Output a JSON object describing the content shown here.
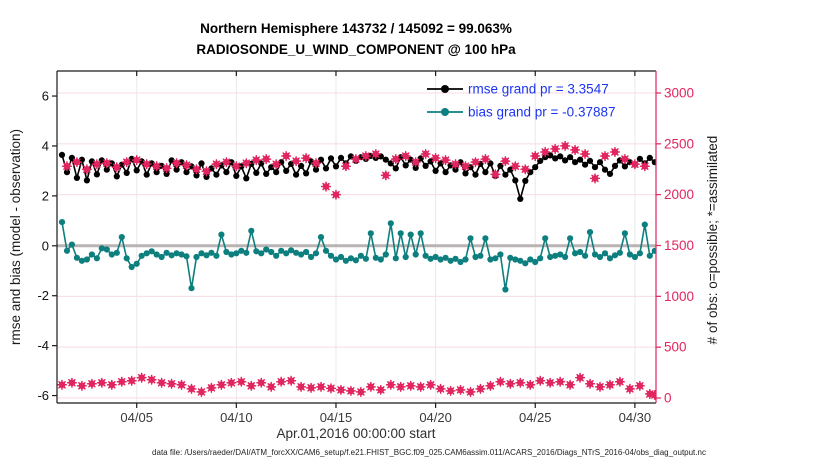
{
  "figure": {
    "title_line1": "Northern Hemisphere 143732 / 145092 = 99.063%",
    "title_line2": "RADIOSONDE_U_WIND_COMPONENT @ 100 hPa",
    "xlabel": "Apr.01,2016 00:00:00 start",
    "ylabel_left": "rmse and bias (model - observation)",
    "ylabel_right": "# of obs: o=possible; *=assimilated",
    "footer": "data file: /Users/raeder/DAI/ATM_forcXX/CAM6_setup/f.e21.FHIST_BGC.f09_025.CAM6assim.011/ACARS_2016/Diags_NTrS_2016-04/obs_diag_output.nc",
    "stats": {
      "assimilated": 143732,
      "possible": 145092,
      "percent_label": "99.063%"
    },
    "legend_items": [
      {
        "label": "rmse grand pr = 3.3547",
        "color": "#000000"
      },
      {
        "label": "bias grand pr = -0.37887",
        "color": "#0e7f7f"
      }
    ]
  },
  "colors": {
    "rmse": "#000000",
    "bias": "#0e7f7f",
    "obs": "#e0255f",
    "legend_text": "#1d35f0",
    "zero_line": "#b9b3b3",
    "grid_vertical": "#e9e9e9",
    "grid_horizontal": "#f7dbe6",
    "axis": "#1a1a1a",
    "tick_label": "#3a3a3a"
  },
  "chart_data": {
    "type": "line",
    "title": "Northern Hemisphere 143732 / 145092 = 99.063% | RADIOSONDE_U_WIND_COMPONENT @ 100 hPa",
    "x_unit": "days since Apr.01,2016 00:00:00 UTC (6-hourly bins)",
    "x_start": 0.25,
    "x_step": 0.25,
    "n_points": 120,
    "x_ticks": [
      {
        "day": 4,
        "label": "04/05"
      },
      {
        "day": 9,
        "label": "04/10"
      },
      {
        "day": 14,
        "label": "04/15"
      },
      {
        "day": 19,
        "label": "04/20"
      },
      {
        "day": 24,
        "label": "04/25"
      },
      {
        "day": 29,
        "label": "04/30"
      }
    ],
    "left_axis": {
      "ticks": [
        -6,
        -4,
        -2,
        0,
        2,
        4,
        6
      ],
      "lim": [
        -6.3,
        7.0
      ]
    },
    "right_axis": {
      "ticks": [
        0,
        500,
        1000,
        1500,
        2000,
        2500,
        3000
      ],
      "lim": [
        -50,
        3265
      ]
    },
    "zero_line": 0,
    "grand_rmse": 3.3547,
    "grand_bias": -0.37887,
    "series": [
      {
        "name": "rmse",
        "axis": "left",
        "marker": "filled-circle",
        "line": true,
        "values": [
          3.64,
          2.95,
          3.52,
          2.72,
          3.45,
          2.62,
          3.38,
          2.86,
          3.42,
          3.05,
          3.3,
          2.78,
          3.25,
          2.92,
          3.48,
          3.02,
          3.38,
          2.85,
          3.3,
          2.95,
          3.2,
          2.88,
          3.42,
          3.05,
          3.35,
          2.95,
          3.18,
          2.82,
          3.3,
          2.76,
          3.1,
          2.85,
          3.22,
          2.95,
          3.35,
          2.8,
          3.18,
          2.7,
          3.28,
          2.92,
          3.3,
          2.88,
          3.15,
          2.95,
          3.35,
          3.0,
          3.28,
          2.85,
          3.2,
          2.9,
          3.38,
          3.05,
          3.45,
          3.1,
          3.5,
          3.18,
          3.52,
          3.3,
          3.58,
          3.4,
          3.55,
          3.48,
          3.6,
          3.52,
          3.58,
          3.45,
          3.3,
          3.1,
          3.55,
          3.22,
          3.45,
          3.12,
          3.5,
          3.2,
          3.38,
          3.0,
          3.3,
          2.95,
          3.22,
          3.05,
          3.35,
          2.9,
          3.15,
          2.85,
          3.28,
          2.95,
          3.3,
          2.8,
          3.2,
          2.85,
          3.05,
          2.62,
          1.88,
          2.6,
          2.95,
          3.15,
          3.4,
          3.55,
          3.62,
          3.5,
          3.58,
          3.42,
          3.55,
          3.35,
          3.45,
          3.25,
          3.4,
          3.15,
          3.35,
          3.05,
          2.88,
          3.2,
          3.42,
          3.18,
          3.35,
          3.25,
          3.48,
          3.3,
          3.52,
          3.35
        ]
      },
      {
        "name": "bias",
        "axis": "left",
        "marker": "filled-circle",
        "line": true,
        "values": [
          0.95,
          -0.2,
          0.05,
          -0.48,
          -0.6,
          -0.55,
          -0.35,
          -0.5,
          -0.1,
          -0.15,
          -0.35,
          -0.28,
          0.35,
          -0.5,
          -0.85,
          -0.72,
          -0.4,
          -0.3,
          -0.22,
          -0.35,
          -0.45,
          -0.28,
          -0.38,
          -0.3,
          -0.35,
          -0.42,
          -1.7,
          -0.45,
          -0.3,
          -0.38,
          -0.28,
          -0.4,
          0.45,
          -0.25,
          -0.35,
          -0.3,
          -0.2,
          -0.28,
          0.6,
          -0.22,
          -0.3,
          -0.15,
          -0.25,
          -0.4,
          -0.2,
          -0.3,
          -0.18,
          -0.28,
          -0.35,
          -0.25,
          -0.45,
          -0.3,
          0.35,
          -0.2,
          -0.4,
          -0.55,
          -0.45,
          -0.6,
          -0.5,
          -0.58,
          -0.4,
          -0.52,
          0.5,
          -0.48,
          -0.55,
          -0.35,
          0.9,
          -0.5,
          0.5,
          -0.45,
          0.45,
          -0.35,
          0.5,
          -0.4,
          -0.52,
          -0.45,
          -0.55,
          -0.48,
          -0.6,
          -0.52,
          -0.65,
          -0.55,
          0.3,
          -0.45,
          -0.4,
          0.3,
          -0.55,
          -0.5,
          -0.35,
          -1.75,
          -0.48,
          -0.55,
          -0.6,
          -0.7,
          -0.55,
          -0.65,
          -0.5,
          0.3,
          -0.45,
          -0.4,
          -0.35,
          -0.45,
          0.3,
          -0.3,
          -0.25,
          -0.4,
          0.55,
          -0.35,
          -0.45,
          -0.3,
          -0.5,
          -0.38,
          -0.28,
          0.5,
          -0.35,
          -0.45,
          -0.3,
          0.85,
          -0.4,
          -0.2
        ]
      },
      {
        "name": "obs_count (o=possible and *=assimilated, overlapping)",
        "axis": "right",
        "marker": "asterisk",
        "line": false,
        "values": [
          130,
          2280,
          150,
          2320,
          120,
          2250,
          140,
          2300,
          150,
          2310,
          130,
          2270,
          160,
          2320,
          170,
          2340,
          200,
          2300,
          180,
          2280,
          150,
          2260,
          140,
          2310,
          130,
          2290,
          90,
          2250,
          60,
          2230,
          100,
          2300,
          130,
          2320,
          150,
          2280,
          160,
          2310,
          120,
          2340,
          150,
          2350,
          110,
          2300,
          160,
          2380,
          170,
          2330,
          110,
          2360,
          100,
          2310,
          110,
          2080,
          95,
          2000,
          80,
          2280,
          70,
          2350,
          60,
          2380,
          110,
          2400,
          80,
          2190,
          130,
          2350,
          110,
          2380,
          120,
          2320,
          110,
          2400,
          130,
          2360,
          90,
          2340,
          70,
          2300,
          80,
          2280,
          60,
          2320,
          90,
          2350,
          120,
          2200,
          160,
          2330,
          140,
          2280,
          150,
          2250,
          130,
          2380,
          170,
          2420,
          150,
          2450,
          160,
          2480,
          130,
          2440,
          200,
          2400,
          140,
          2160,
          110,
          2380,
          130,
          2420,
          160,
          2350,
          90,
          2300,
          120,
          2280,
          40,
          30
        ]
      }
    ]
  }
}
